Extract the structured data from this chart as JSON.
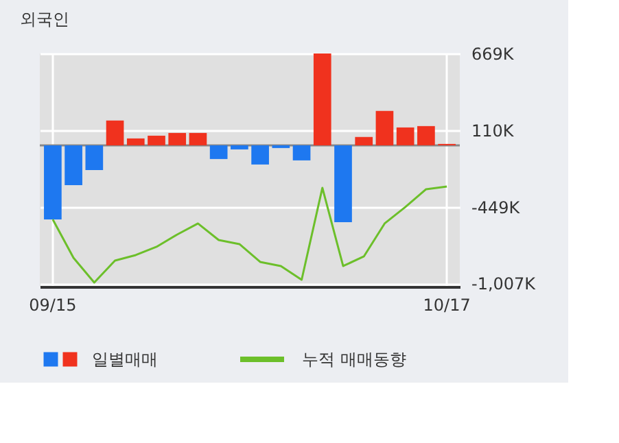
{
  "chart_data": {
    "type": "bar",
    "title": "외국인",
    "categories": [
      "09/15",
      null,
      null,
      null,
      null,
      null,
      null,
      null,
      null,
      null,
      null,
      null,
      null,
      null,
      null,
      null,
      null,
      null,
      null,
      "10/17"
    ],
    "series": [
      {
        "name": "일별매매",
        "values": [
          -540,
          -290,
          -180,
          180,
          50,
          70,
          90,
          90,
          -100,
          -30,
          -140,
          -20,
          -110,
          669,
          -560,
          60,
          250,
          130,
          140,
          10
        ],
        "colors": [
          "#1e78f0",
          "#1e78f0",
          "#1e78f0",
          "#f0321e",
          "#f0321e",
          "#f0321e",
          "#f0321e",
          "#f0321e",
          "#1e78f0",
          "#1e78f0",
          "#1e78f0",
          "#1e78f0",
          "#1e78f0",
          "#f0321e",
          "#1e78f0",
          "#f0321e",
          "#f0321e",
          "#f0321e",
          "#f0321e",
          "#f0321e"
        ]
      },
      {
        "name": "누적 매매동향",
        "type": "line",
        "color": "#6cbf2a",
        "values": [
          -540,
          -820,
          -1000,
          -840,
          -800,
          -740,
          -650,
          -570,
          -690,
          -720,
          -850,
          -880,
          -980,
          -310,
          -880,
          -810,
          -570,
          -450,
          -320,
          -300
        ]
      }
    ],
    "ylim": [
      -1030,
      669
    ],
    "yticks": [
      {
        "value": 669,
        "label": "669K"
      },
      {
        "value": 110,
        "label": "110K"
      },
      {
        "value": -449,
        "label": "-449K"
      },
      {
        "value": -1007,
        "label": "-1,007K"
      }
    ],
    "grid": true,
    "legend": "bottom",
    "ref_lines": [
      {
        "axis": "y",
        "value": 0,
        "color": "#888888"
      }
    ]
  }
}
